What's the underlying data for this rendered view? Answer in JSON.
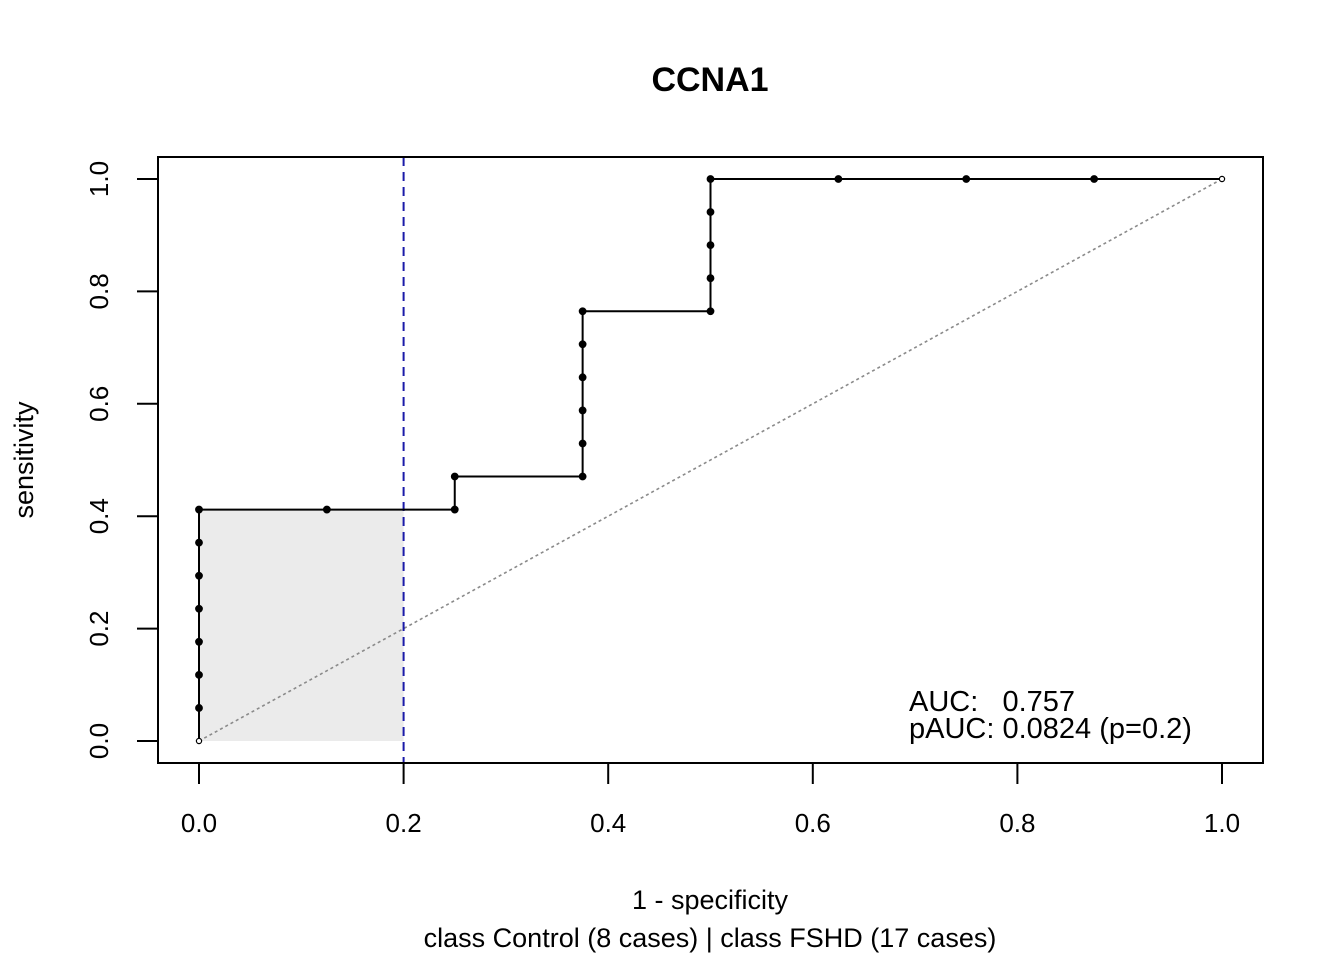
{
  "chart_data": {
    "type": "line",
    "title": "CCNA1",
    "xlabel": "1 - specificity",
    "xlabel2": "class Control (8 cases) | class FSHD (17 cases)",
    "ylabel": "sensitivity",
    "xlim": [
      0,
      1
    ],
    "ylim": [
      0,
      1
    ],
    "xticks": [
      "0.0",
      "0.2",
      "0.4",
      "0.6",
      "0.8",
      "1.0"
    ],
    "yticks": [
      "0.0",
      "0.2",
      "0.4",
      "0.6",
      "0.8",
      "1.0"
    ],
    "grid": false,
    "series": [
      {
        "x": [
          0,
          0,
          0,
          0,
          0,
          0,
          0,
          0,
          0.125,
          0.25,
          0.25,
          0.375,
          0.375,
          0.375,
          0.375,
          0.375,
          0.375,
          0.5,
          0.5,
          0.5,
          0.5,
          0.5,
          0.625,
          0.75,
          0.875,
          1.0
        ],
        "y": [
          0,
          0.0588,
          0.1176,
          0.1765,
          0.2353,
          0.2941,
          0.3529,
          0.4118,
          0.4118,
          0.4118,
          0.4706,
          0.4706,
          0.5294,
          0.5882,
          0.6471,
          0.7059,
          0.7647,
          0.7647,
          0.8235,
          0.8824,
          0.9412,
          1.0,
          1.0,
          1.0,
          1.0,
          1.0
        ]
      }
    ],
    "reference_line": {
      "x": [
        0,
        1
      ],
      "y": [
        0,
        1
      ],
      "style": "dotted",
      "color": "#8a8a8a"
    },
    "partial_region": {
      "x_from": 0,
      "x_to": 0.2,
      "y_top": 0.4118,
      "fill": "#ebebeb"
    },
    "cutoff_line": {
      "x": 0.2,
      "style": "dashed",
      "color": "#1a1aa8"
    },
    "annotations": {
      "auc": "AUC:   0.757",
      "pauc": "pAUC: 0.0824 (p=0.2)"
    }
  }
}
